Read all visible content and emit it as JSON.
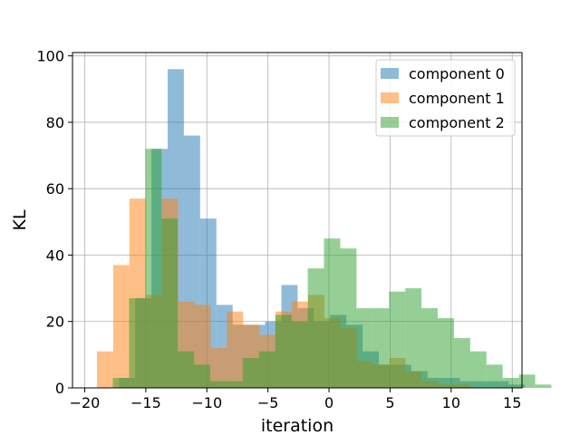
{
  "chart_data": {
    "type": "bar",
    "subtype": "overlapping-histogram",
    "title": "",
    "xlabel": "iteration",
    "ylabel": "KL",
    "xlim": [
      -21,
      15.8
    ],
    "ylim": [
      0,
      101
    ],
    "xticks": [
      -20,
      -15,
      -10,
      -5,
      0,
      5,
      10,
      15
    ],
    "yticks": [
      0,
      20,
      40,
      60,
      80,
      100
    ],
    "grid": true,
    "legend_position": "top-right",
    "bar_opacity": 0.5,
    "series": [
      {
        "name": "component 0",
        "color": "#1f77b4",
        "bin_start": -17.2,
        "bin_width": 1.33,
        "counts": [
          3,
          27,
          72,
          96,
          76,
          51,
          25,
          19,
          19,
          20,
          31,
          24,
          20,
          22,
          19,
          11,
          7,
          7,
          5,
          3,
          3,
          2,
          2,
          2,
          1
        ]
      },
      {
        "name": "component 1",
        "color": "#ff7f0e",
        "bin_start": -19.0,
        "bin_width": 1.33,
        "counts": [
          11,
          37,
          57,
          28,
          57,
          26,
          25,
          12,
          23,
          19,
          16,
          23,
          26,
          28,
          21,
          18,
          8,
          7,
          9,
          5,
          2,
          1,
          1
        ]
      },
      {
        "name": "component 2",
        "color": "#2ca02c",
        "bin_start": -17.7,
        "bin_width": 1.33,
        "counts": [
          3,
          27,
          72,
          51,
          11,
          7,
          2,
          2,
          9,
          11,
          22,
          20,
          36,
          45,
          42,
          24,
          24,
          29,
          30,
          24,
          21,
          15,
          11,
          7,
          3,
          4,
          1
        ]
      }
    ]
  }
}
